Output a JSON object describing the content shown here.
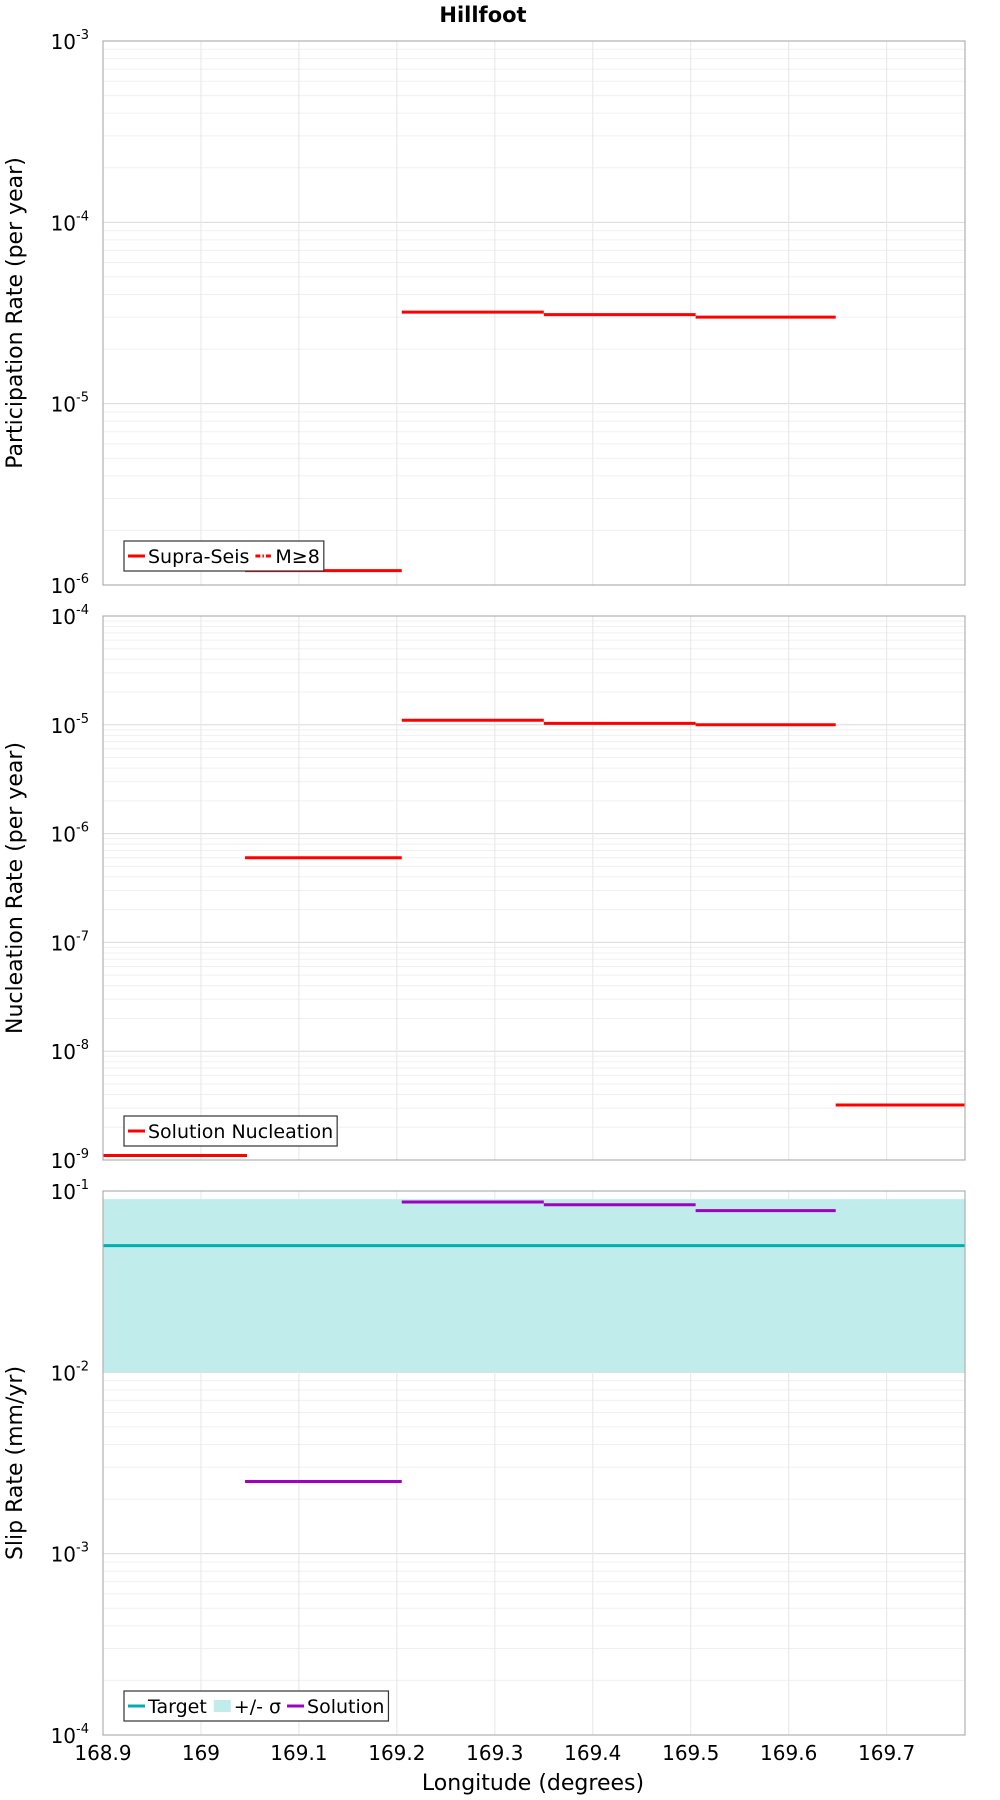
{
  "figure": {
    "title": "Hillfoot",
    "xlabel": "Longitude (degrees)"
  },
  "chart_data": [
    {
      "type": "line",
      "ylabel": "Participation Rate (per year)",
      "yscale": "log",
      "ylim": [
        1e-06,
        0.001
      ],
      "xlim": [
        168.9,
        169.78
      ],
      "xticks": [
        "168.9",
        "169",
        "169.1",
        "169.2",
        "169.3",
        "169.4",
        "169.5",
        "169.6",
        "169.7"
      ],
      "yticks": [
        {
          "base": "10",
          "exp": "-6"
        },
        {
          "base": "10",
          "exp": "-5"
        },
        {
          "base": "10",
          "exp": "-4"
        },
        {
          "base": "10",
          "exp": "-3"
        }
      ],
      "grid": true,
      "legend": {
        "position": "bottom-left",
        "entries": [
          {
            "label": "Supra-Seis",
            "color": "#ff0000",
            "style": "solid"
          },
          {
            "label": "M≥8",
            "color": "#ff0000",
            "style": "dashdot"
          }
        ]
      },
      "series": [
        {
          "name": "Supra-Seis",
          "color": "#ff0000",
          "style": "solid",
          "segments": [
            {
              "x0": 169.045,
              "x1": 169.205,
              "y": 1.2e-06
            },
            {
              "x0": 169.205,
              "x1": 169.35,
              "y": 3.2e-05
            },
            {
              "x0": 169.35,
              "x1": 169.505,
              "y": 3.1e-05
            },
            {
              "x0": 169.505,
              "x1": 169.648,
              "y": 3e-05
            }
          ]
        }
      ]
    },
    {
      "type": "line",
      "ylabel": "Nucleation Rate (per year)",
      "yscale": "log",
      "ylim": [
        1e-09,
        0.0001
      ],
      "xlim": [
        168.9,
        169.78
      ],
      "xticks": [
        "168.9",
        "169",
        "169.1",
        "169.2",
        "169.3",
        "169.4",
        "169.5",
        "169.6",
        "169.7"
      ],
      "yticks": [
        {
          "base": "10",
          "exp": "-9"
        },
        {
          "base": "10",
          "exp": "-8"
        },
        {
          "base": "10",
          "exp": "-7"
        },
        {
          "base": "10",
          "exp": "-6"
        },
        {
          "base": "10",
          "exp": "-5"
        },
        {
          "base": "10",
          "exp": "-4"
        }
      ],
      "grid": true,
      "legend": {
        "position": "bottom-left",
        "entries": [
          {
            "label": "Solution Nucleation",
            "color": "#ff0000",
            "style": "solid"
          }
        ]
      },
      "series": [
        {
          "name": "Solution Nucleation",
          "color": "#ff0000",
          "style": "solid",
          "segments": [
            {
              "x0": 168.9,
              "x1": 169.047,
              "y": 1.1e-09
            },
            {
              "x0": 169.045,
              "x1": 169.205,
              "y": 6e-07
            },
            {
              "x0": 169.205,
              "x1": 169.35,
              "y": 1.1e-05
            },
            {
              "x0": 169.35,
              "x1": 169.505,
              "y": 1.03e-05
            },
            {
              "x0": 169.505,
              "x1": 169.648,
              "y": 1e-05
            },
            {
              "x0": 169.648,
              "x1": 169.78,
              "y": 3.2e-09
            }
          ]
        }
      ]
    },
    {
      "type": "line",
      "ylabel": "Slip Rate (mm/yr)",
      "yscale": "log",
      "ylim": [
        0.0001,
        0.1
      ],
      "xlim": [
        168.9,
        169.78
      ],
      "xticks": [
        "168.9",
        "169",
        "169.1",
        "169.2",
        "169.3",
        "169.4",
        "169.5",
        "169.6",
        "169.7"
      ],
      "yticks": [
        {
          "base": "10",
          "exp": "-4"
        },
        {
          "base": "10",
          "exp": "-3"
        },
        {
          "base": "10",
          "exp": "-2"
        },
        {
          "base": "10",
          "exp": "-1"
        }
      ],
      "grid": true,
      "legend": {
        "position": "bottom-left",
        "entries": [
          {
            "label": "Target",
            "color": "#00b0b0",
            "style": "solid"
          },
          {
            "label": "+/- σ",
            "color": "#c0ecec",
            "style": "band"
          },
          {
            "label": "Solution",
            "color": "#a000c0",
            "style": "solid"
          }
        ]
      },
      "band": {
        "name": "+/- σ",
        "color": "#c0ecec",
        "x0": 168.9,
        "x1": 169.78,
        "ymin": 0.01,
        "ymax": 0.09
      },
      "series": [
        {
          "name": "Target",
          "color": "#00b0b0",
          "style": "solid",
          "segments": [
            {
              "x0": 168.9,
              "x1": 169.78,
              "y": 0.05
            }
          ]
        },
        {
          "name": "Solution",
          "color": "#a000c0",
          "style": "solid",
          "segments": [
            {
              "x0": 169.045,
              "x1": 169.205,
              "y": 0.0025
            },
            {
              "x0": 169.205,
              "x1": 169.35,
              "y": 0.087
            },
            {
              "x0": 169.35,
              "x1": 169.505,
              "y": 0.084
            },
            {
              "x0": 169.505,
              "x1": 169.648,
              "y": 0.078
            }
          ]
        }
      ]
    }
  ]
}
